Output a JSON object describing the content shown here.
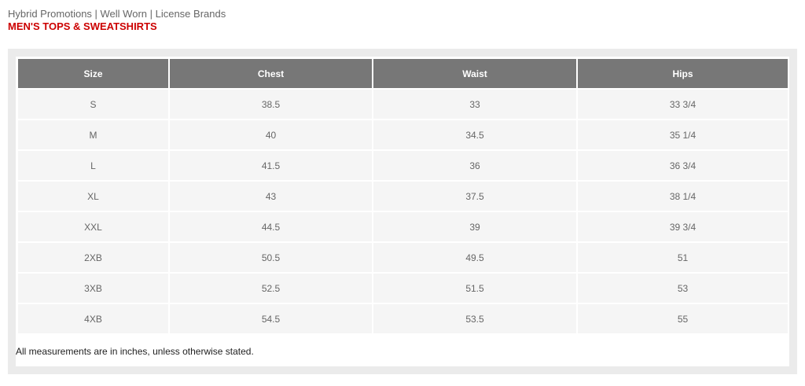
{
  "brands": "Hybrid Promotions | Well Worn | License Brands",
  "title": "MEN'S TOPS & SWEATSHIRTS",
  "table": {
    "headers": [
      "Size",
      "Chest",
      "Waist",
      "Hips"
    ],
    "rows": [
      [
        "S",
        "38.5",
        "33",
        "33 3/4"
      ],
      [
        "M",
        "40",
        "34.5",
        "35 1/4"
      ],
      [
        "L",
        "41.5",
        "36",
        "36 3/4"
      ],
      [
        "XL",
        "43",
        "37.5",
        "38 1/4"
      ],
      [
        "XXL",
        "44.5",
        "39",
        "39 3/4"
      ],
      [
        "2XB",
        "50.5",
        "49.5",
        "51"
      ],
      [
        "3XB",
        "52.5",
        "51.5",
        "53"
      ],
      [
        "4XB",
        "54.5",
        "53.5",
        "55"
      ]
    ]
  },
  "note": "All measurements are in inches, unless otherwise stated."
}
